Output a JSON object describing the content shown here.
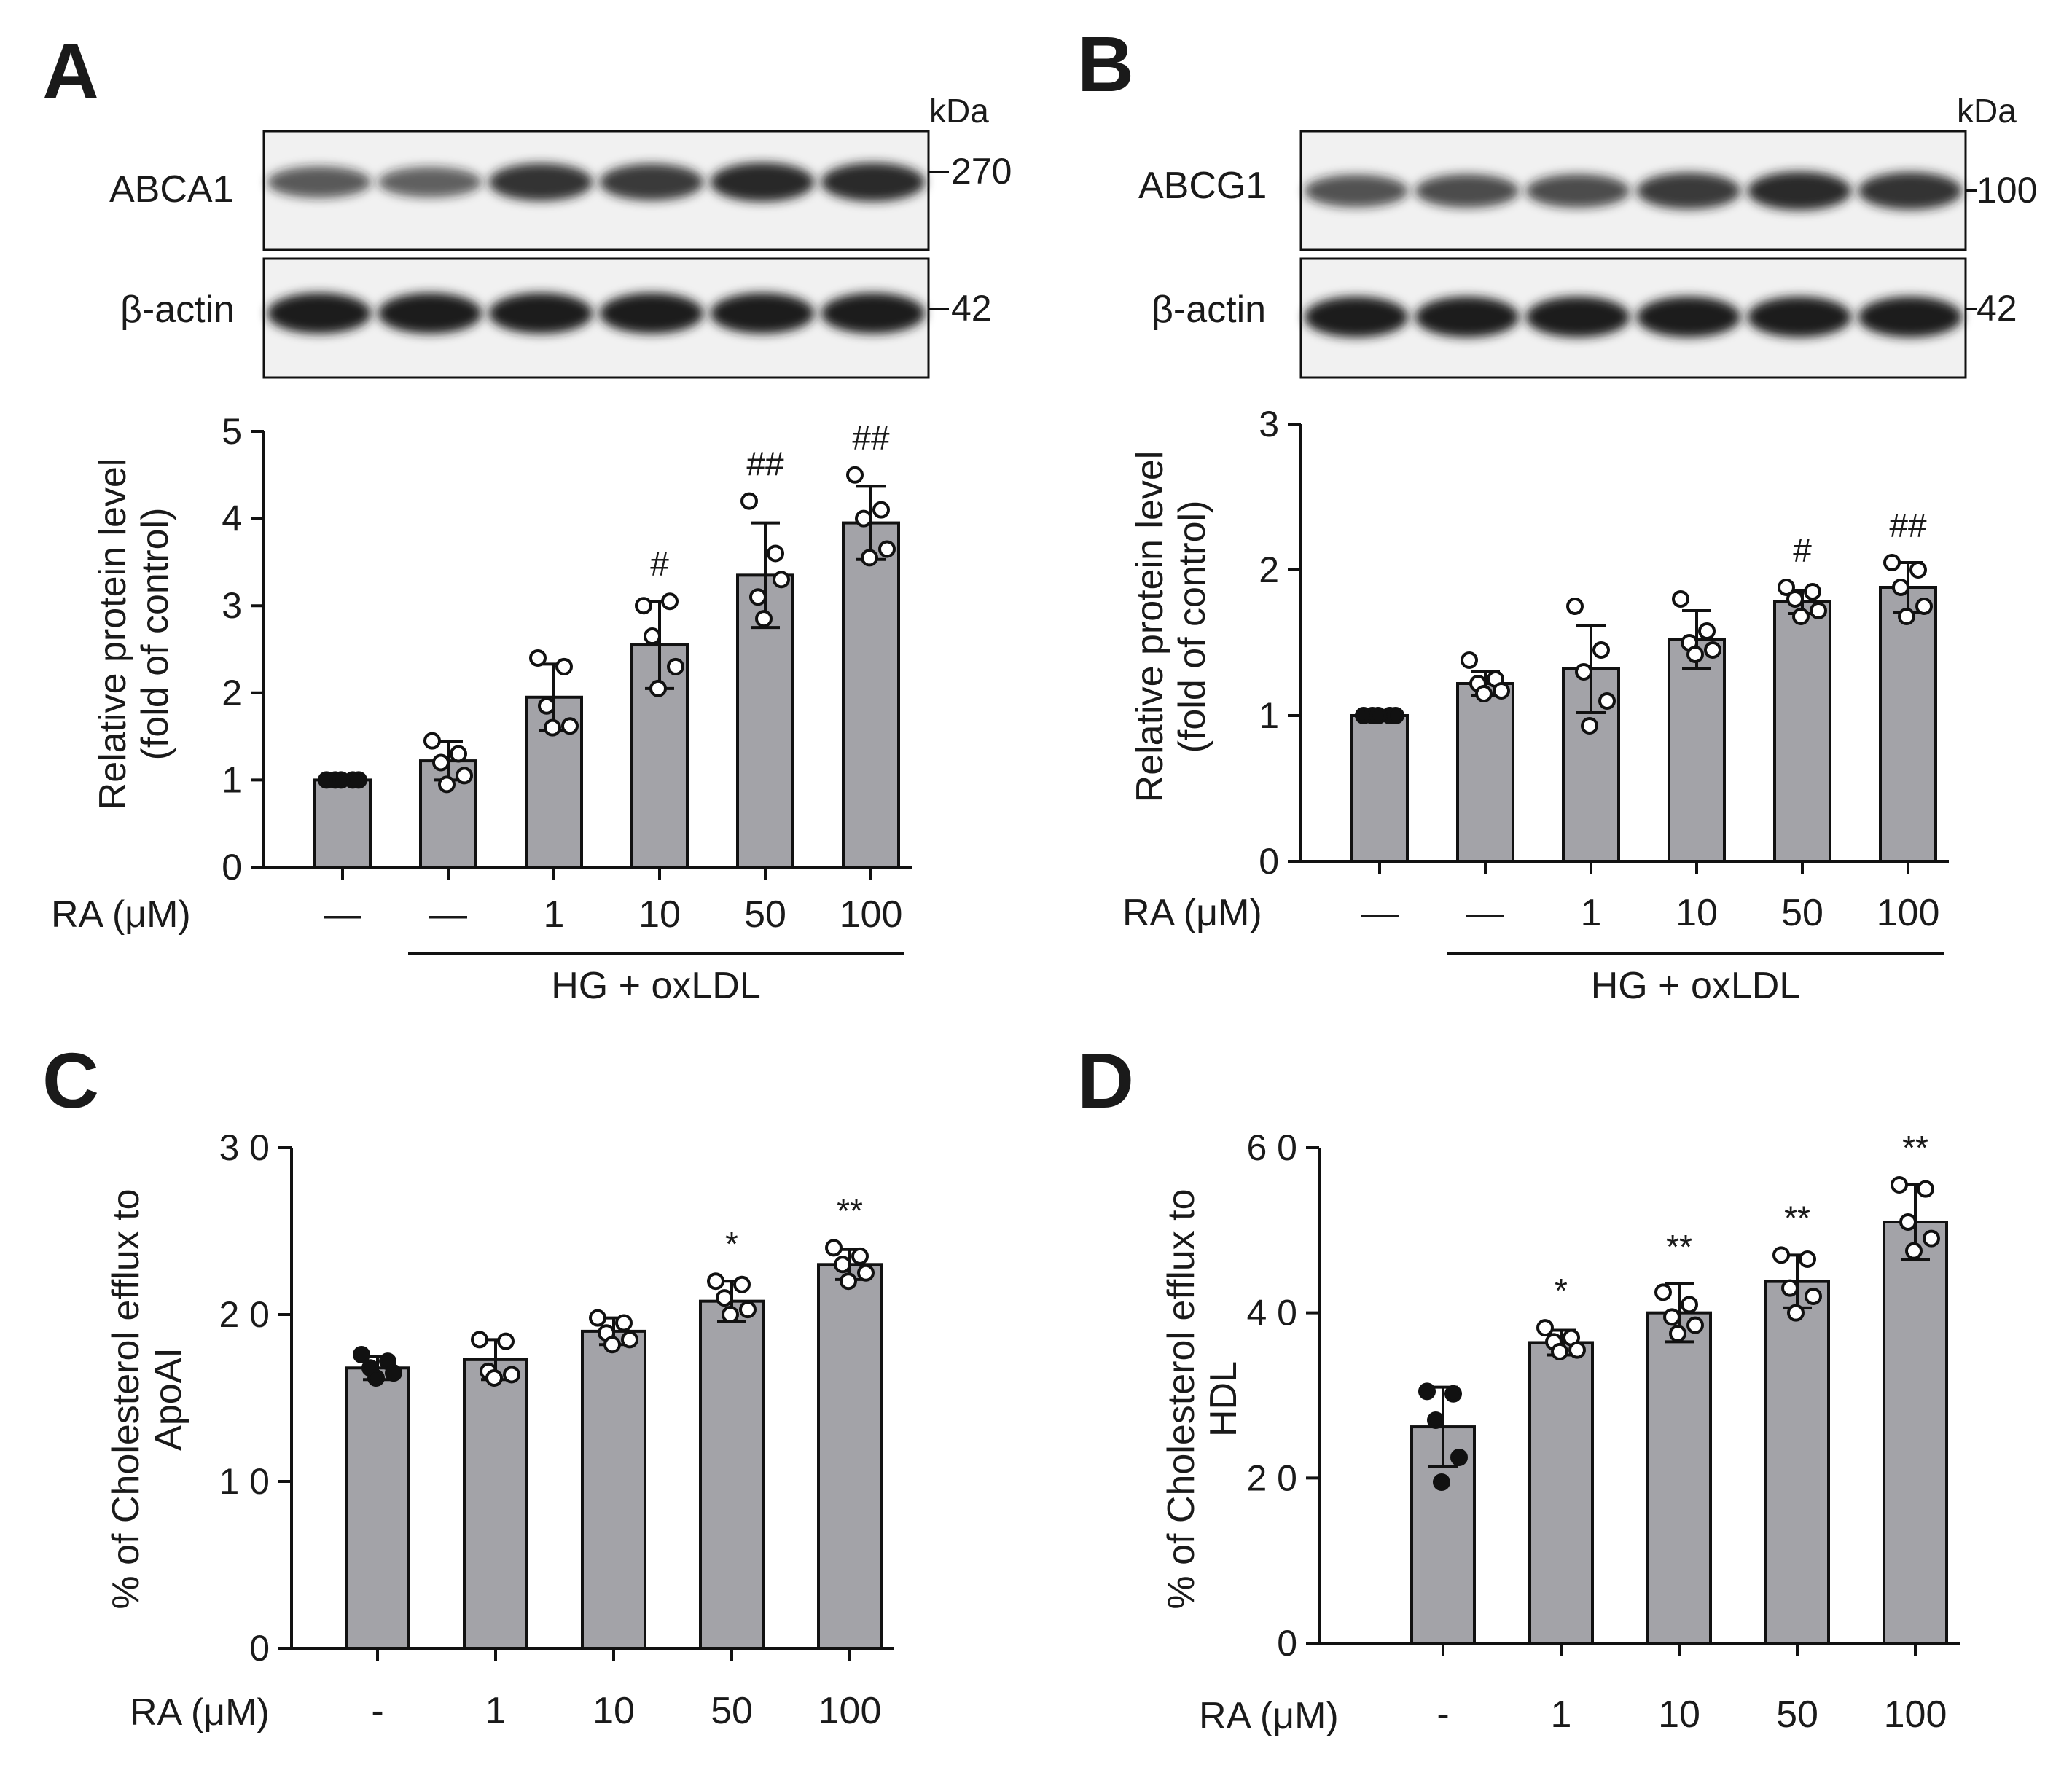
{
  "colors": {
    "bar": "#a3a3a8",
    "ink": "#111111",
    "blot_bg": "#f1f1f1",
    "band": "#1c1c1c"
  },
  "blots": [
    {
      "panel": "A",
      "kda": "kDa",
      "rows": [
        {
          "label": "ABCA1",
          "marker": "270",
          "intensities": [
            0.55,
            0.5,
            0.85,
            0.8,
            0.92,
            0.9
          ]
        },
        {
          "label": "β-actin",
          "marker": "42",
          "intensities": [
            1,
            1,
            1,
            1,
            1,
            1
          ]
        }
      ]
    },
    {
      "panel": "B",
      "kda": "kDa",
      "rows": [
        {
          "label": "ABCG1",
          "marker": "100",
          "intensities": [
            0.6,
            0.65,
            0.65,
            0.8,
            0.9,
            0.85
          ]
        },
        {
          "label": "β-actin",
          "marker": "42",
          "intensities": [
            1,
            1,
            1,
            1,
            1,
            1
          ]
        }
      ]
    }
  ],
  "chart_data": [
    {
      "panel": "A",
      "type": "bar",
      "ylabel": [
        "Relative protein level",
        "(fold of control)"
      ],
      "ylim": [
        0,
        5
      ],
      "yticks": [
        "0",
        "1",
        "2",
        "3",
        "4",
        "5"
      ],
      "xlabel": "RA (μM)",
      "categories": [
        "—",
        "—",
        "1",
        "10",
        "50",
        "100"
      ],
      "values": [
        1.0,
        1.22,
        1.95,
        2.55,
        3.35,
        3.95
      ],
      "errors": [
        0.0,
        0.22,
        0.38,
        0.5,
        0.6,
        0.42
      ],
      "points": [
        [
          1,
          1,
          1,
          1,
          1
        ],
        [
          1.45,
          1.3,
          1.2,
          1.05,
          0.95
        ],
        [
          2.4,
          2.3,
          1.85,
          1.62,
          1.6
        ],
        [
          3.0,
          3.05,
          2.65,
          2.3,
          2.05
        ],
        [
          4.2,
          3.6,
          3.1,
          3.3,
          2.85
        ],
        [
          4.5,
          4.1,
          4.0,
          3.65,
          3.55
        ]
      ],
      "annotations": [
        "",
        "",
        "",
        "#",
        "##",
        "##"
      ],
      "group_label": "HG + oxLDL"
    },
    {
      "panel": "B",
      "type": "bar",
      "ylabel": [
        "Relative protein level",
        "(fold of control)"
      ],
      "ylim": [
        0,
        3
      ],
      "yticks": [
        "0",
        "1",
        "2",
        "3"
      ],
      "xlabel": "RA (μM)",
      "categories": [
        "—",
        "—",
        "1",
        "10",
        "50",
        "100"
      ],
      "values": [
        1.0,
        1.22,
        1.32,
        1.52,
        1.78,
        1.88
      ],
      "errors": [
        0.0,
        0.08,
        0.3,
        0.2,
        0.08,
        0.17
      ],
      "points": [
        [
          1,
          1,
          1,
          1,
          1
        ],
        [
          1.38,
          1.25,
          1.22,
          1.17,
          1.15
        ],
        [
          1.75,
          1.45,
          1.3,
          1.1,
          0.93
        ],
        [
          1.8,
          1.58,
          1.5,
          1.45,
          1.42
        ],
        [
          1.88,
          1.85,
          1.8,
          1.72,
          1.68
        ],
        [
          2.05,
          2.0,
          1.88,
          1.75,
          1.68
        ]
      ],
      "annotations": [
        "",
        "",
        "",
        "",
        "#",
        "##"
      ],
      "group_label": "HG + oxLDL"
    },
    {
      "panel": "C",
      "type": "bar",
      "ylabel": [
        "% of Cholesterol efflux to",
        "ApoAI"
      ],
      "ylim": [
        0,
        30
      ],
      "yticks": [
        "0",
        "1 0",
        "2 0",
        "3 0"
      ],
      "xlabel": "RA (μM)",
      "categories": [
        "-",
        "1",
        "10",
        "50",
        "100"
      ],
      "values": [
        16.8,
        17.3,
        19.0,
        20.8,
        23.0
      ],
      "errors": [
        0.7,
        1.2,
        0.8,
        1.2,
        0.9
      ],
      "points": [
        [
          17.6,
          17.2,
          16.8,
          16.5,
          16.2
        ],
        [
          18.5,
          18.4,
          16.6,
          16.4,
          16.2
        ],
        [
          19.8,
          19.5,
          18.9,
          18.5,
          18.2
        ],
        [
          22.0,
          21.8,
          21.0,
          20.3,
          20.0
        ],
        [
          24.0,
          23.5,
          23.0,
          22.5,
          22.0
        ]
      ],
      "annotations": [
        "",
        "",
        "",
        "*",
        "**"
      ]
    },
    {
      "panel": "D",
      "type": "bar",
      "ylabel": [
        "% of Cholesterol efflux to",
        "HDL"
      ],
      "ylim": [
        0,
        60
      ],
      "yticks": [
        "0",
        "2 0",
        "4 0",
        "6 0"
      ],
      "xlabel": "RA (μM)",
      "categories": [
        "-",
        "1",
        "10",
        "50",
        "100"
      ],
      "values": [
        26.2,
        36.4,
        40.0,
        43.8,
        51.0
      ],
      "errors": [
        4.8,
        1.5,
        3.5,
        3.2,
        4.5
      ],
      "points": [
        [
          30.5,
          30.2,
          27.0,
          22.5,
          19.5
        ],
        [
          38.2,
          37.0,
          36.5,
          35.5,
          35.3
        ],
        [
          42.5,
          41.0,
          39.5,
          38.5,
          37.5
        ],
        [
          47.0,
          46.5,
          43.0,
          42.0,
          40.0
        ],
        [
          55.5,
          55.0,
          51.0,
          49.0,
          47.5
        ]
      ],
      "annotations": [
        "",
        "*",
        "**",
        "**",
        "**"
      ]
    }
  ]
}
